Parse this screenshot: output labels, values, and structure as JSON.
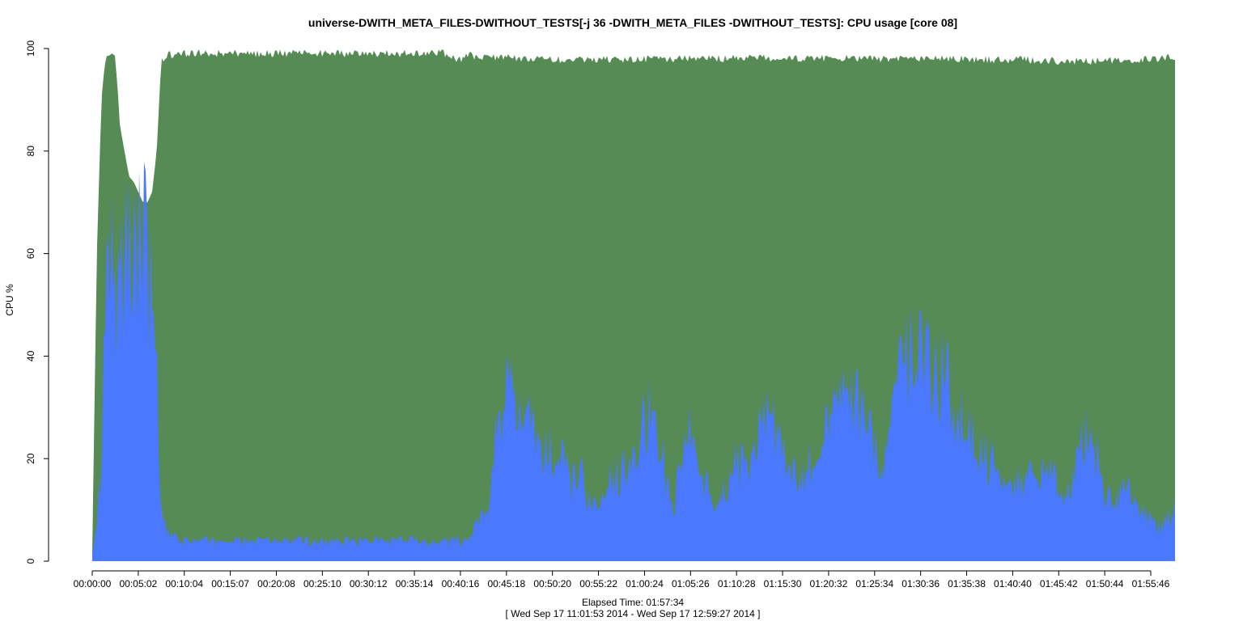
{
  "chart_data": {
    "type": "area",
    "title": "universe-DWITH_META_FILES-DWITHOUT_TESTS[-j 36 -DWITH_META_FILES -DWITHOUT_TESTS]: CPU usage [core 08]",
    "xlabel": "Elapsed Time: 01:57:34",
    "xlabel_sub": "[ Wed Sep 17 11:01:53 2014 - Wed Sep 17 12:59:27 2014 ]",
    "ylabel": "CPU %",
    "ylim": [
      0,
      100
    ],
    "xlim_seconds": [
      0,
      7054
    ],
    "x_tick_labels": [
      "00:00:00",
      "00:05:02",
      "00:10:04",
      "00:15:07",
      "00:20:08",
      "00:25:10",
      "00:30:12",
      "00:35:14",
      "00:40:16",
      "00:45:18",
      "00:50:20",
      "00:55:22",
      "01:00:24",
      "01:05:26",
      "01:10:28",
      "01:15:30",
      "01:20:32",
      "01:25:34",
      "01:30:36",
      "01:35:38",
      "01:40:40",
      "01:45:42",
      "01:50:44",
      "01:55:46"
    ],
    "y_ticks": [
      0,
      20,
      40,
      60,
      80,
      100
    ],
    "colors": {
      "green": "#568b55",
      "blue": "#4a78ff",
      "axis": "#000000"
    },
    "series": [
      {
        "color": "#4a78ff",
        "x_seconds": [
          0,
          30,
          60,
          90,
          120,
          150,
          180,
          210,
          240,
          270,
          300,
          330,
          360,
          390,
          420,
          450,
          480,
          510,
          540,
          570,
          600,
          660,
          720,
          900,
          1200,
          1500,
          1800,
          2100,
          2300,
          2400,
          2460,
          2520,
          2580,
          2640,
          2700,
          2760,
          2820,
          2880,
          2940,
          3000,
          3060,
          3120,
          3180,
          3240,
          3300,
          3360,
          3420,
          3480,
          3540,
          3600,
          3660,
          3720,
          3780,
          3840,
          3900,
          3960,
          4020,
          4080,
          4140,
          4200,
          4260,
          4320,
          4380,
          4440,
          4500,
          4560,
          4620,
          4680,
          4740,
          4800,
          4860,
          4920,
          4980,
          5040,
          5100,
          5160,
          5220,
          5280,
          5340,
          5400,
          5460,
          5520,
          5580,
          5640,
          5700,
          5760,
          5820,
          5880,
          5940,
          6000,
          6060,
          6120,
          6180,
          6240,
          6300,
          6360,
          6420,
          6480,
          6540,
          6600,
          6660,
          6720,
          6780,
          6840,
          6900,
          6960,
          7000,
          7054
        ],
        "values": [
          1,
          8,
          20,
          55,
          65,
          50,
          55,
          60,
          62,
          66,
          65,
          64,
          60,
          52,
          35,
          10,
          6,
          5,
          4.5,
          4,
          4,
          4,
          4,
          4,
          4,
          4,
          4,
          4,
          4,
          4,
          5,
          8,
          10,
          30,
          33,
          30,
          28,
          25,
          22,
          21,
          20,
          15,
          18,
          12,
          9,
          16,
          17,
          20,
          25,
          28,
          30,
          20,
          10,
          20,
          28,
          18,
          14,
          12,
          15,
          20,
          18,
          24,
          30,
          26,
          22,
          18,
          15,
          20,
          25,
          28,
          30,
          35,
          32,
          26,
          22,
          20,
          30,
          38,
          42,
          44,
          40,
          38,
          34,
          30,
          26,
          22,
          21,
          20,
          18,
          17,
          16,
          16,
          17,
          18,
          16,
          14,
          20,
          26,
          22,
          14,
          10,
          16,
          12,
          10,
          8,
          7,
          8,
          10
        ]
      },
      {
        "color": "#568b55",
        "x_seconds": [
          0,
          30,
          60,
          90,
          120,
          150,
          180,
          210,
          240,
          270,
          300,
          330,
          360,
          390,
          420,
          450,
          480,
          600,
          1200,
          2000,
          2300,
          2330,
          2400,
          2460,
          2500,
          2600,
          3000,
          4000,
          5000,
          6000,
          6500,
          7054
        ],
        "values": [
          2,
          60,
          90,
          100,
          100,
          100,
          85,
          80,
          75,
          74,
          72,
          70,
          70,
          72,
          80,
          98,
          99.5,
          99.8,
          99.8,
          99.8,
          99.8,
          99,
          98.5,
          99.5,
          99,
          99,
          98.6,
          98.8,
          98.8,
          98.6,
          98.2,
          99
        ]
      }
    ]
  }
}
